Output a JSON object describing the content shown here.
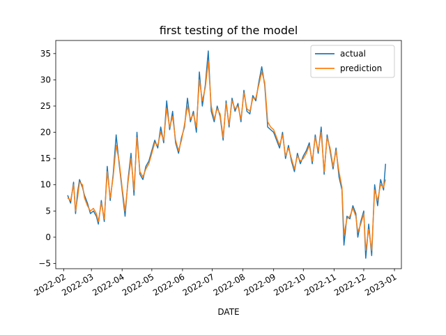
{
  "chart_data": {
    "type": "line",
    "title": "first testing of the model",
    "xlabel": "DATE",
    "ylabel": "",
    "x_axis": {
      "scale": "date",
      "range": [
        "2022-01-24",
        "2023-01-08"
      ],
      "ticks": [
        "2022-02-01",
        "2022-03-01",
        "2022-04-01",
        "2022-05-01",
        "2022-06-01",
        "2022-07-01",
        "2022-08-01",
        "2022-09-01",
        "2022-10-01",
        "2022-11-01",
        "2022-12-01",
        "2023-01-01"
      ],
      "tick_labels": [
        "2022-02",
        "2022-03",
        "2022-04",
        "2022-05",
        "2022-06",
        "2022-07",
        "2022-08",
        "2022-09",
        "2022-10",
        "2022-11",
        "2022-12",
        "2023-01"
      ]
    },
    "y_axis": {
      "range": [
        -6,
        37.5
      ],
      "ticks": [
        -5,
        0,
        5,
        10,
        15,
        20,
        25,
        30,
        35
      ],
      "tick_labels": [
        "−5",
        "0",
        "5",
        "10",
        "15",
        "20",
        "25",
        "30",
        "35"
      ]
    },
    "grid": false,
    "legend_position": "top-right",
    "series": [
      {
        "name": "actual",
        "color": "#1f77b4",
        "points": [
          [
            "2022-02-05",
            8.0
          ],
          [
            "2022-02-08",
            6.5
          ],
          [
            "2022-02-11",
            10.5
          ],
          [
            "2022-02-13",
            4.5
          ],
          [
            "2022-02-15",
            8.5
          ],
          [
            "2022-02-17",
            11.0
          ],
          [
            "2022-02-20",
            9.5
          ],
          [
            "2022-02-22",
            8.0
          ],
          [
            "2022-02-25",
            6.5
          ],
          [
            "2022-02-28",
            4.5
          ],
          [
            "2022-03-03",
            5.0
          ],
          [
            "2022-03-06",
            4.0
          ],
          [
            "2022-03-08",
            2.5
          ],
          [
            "2022-03-11",
            7.0
          ],
          [
            "2022-03-14",
            3.0
          ],
          [
            "2022-03-17",
            13.5
          ],
          [
            "2022-03-20",
            7.0
          ],
          [
            "2022-03-23",
            12.0
          ],
          [
            "2022-03-26",
            19.5
          ],
          [
            "2022-03-29",
            14.0
          ],
          [
            "2022-04-01",
            9.0
          ],
          [
            "2022-04-04",
            4.0
          ],
          [
            "2022-04-07",
            11.0
          ],
          [
            "2022-04-10",
            16.0
          ],
          [
            "2022-04-13",
            8.0
          ],
          [
            "2022-04-16",
            20.0
          ],
          [
            "2022-04-19",
            12.0
          ],
          [
            "2022-04-22",
            11.0
          ],
          [
            "2022-04-25",
            13.5
          ],
          [
            "2022-04-28",
            14.5
          ],
          [
            "2022-05-01",
            16.5
          ],
          [
            "2022-05-04",
            18.5
          ],
          [
            "2022-05-07",
            17.0
          ],
          [
            "2022-05-10",
            21.0
          ],
          [
            "2022-05-13",
            18.0
          ],
          [
            "2022-05-16",
            26.0
          ],
          [
            "2022-05-19",
            20.5
          ],
          [
            "2022-05-22",
            24.0
          ],
          [
            "2022-05-25",
            18.0
          ],
          [
            "2022-05-28",
            16.0
          ],
          [
            "2022-05-31",
            19.0
          ],
          [
            "2022-06-03",
            21.0
          ],
          [
            "2022-06-06",
            26.5
          ],
          [
            "2022-06-09",
            22.0
          ],
          [
            "2022-06-12",
            24.0
          ],
          [
            "2022-06-15",
            20.0
          ],
          [
            "2022-06-18",
            31.5
          ],
          [
            "2022-06-21",
            25.0
          ],
          [
            "2022-06-24",
            29.0
          ],
          [
            "2022-06-27",
            35.5
          ],
          [
            "2022-06-30",
            24.0
          ],
          [
            "2022-07-03",
            22.0
          ],
          [
            "2022-07-06",
            25.0
          ],
          [
            "2022-07-09",
            23.0
          ],
          [
            "2022-07-12",
            18.5
          ],
          [
            "2022-07-15",
            26.0
          ],
          [
            "2022-07-18",
            21.0
          ],
          [
            "2022-07-21",
            26.5
          ],
          [
            "2022-07-24",
            24.0
          ],
          [
            "2022-07-27",
            25.5
          ],
          [
            "2022-07-30",
            22.0
          ],
          [
            "2022-08-02",
            28.0
          ],
          [
            "2022-08-05",
            24.0
          ],
          [
            "2022-08-08",
            23.5
          ],
          [
            "2022-08-11",
            27.0
          ],
          [
            "2022-08-14",
            26.0
          ],
          [
            "2022-08-17",
            29.5
          ],
          [
            "2022-08-20",
            32.5
          ],
          [
            "2022-08-23",
            29.0
          ],
          [
            "2022-08-26",
            21.0
          ],
          [
            "2022-08-29",
            20.5
          ],
          [
            "2022-09-01",
            20.0
          ],
          [
            "2022-09-04",
            18.5
          ],
          [
            "2022-09-07",
            17.0
          ],
          [
            "2022-09-10",
            20.0
          ],
          [
            "2022-09-13",
            15.0
          ],
          [
            "2022-09-16",
            17.5
          ],
          [
            "2022-09-19",
            14.5
          ],
          [
            "2022-09-22",
            12.5
          ],
          [
            "2022-09-25",
            16.0
          ],
          [
            "2022-09-28",
            14.0
          ],
          [
            "2022-10-01",
            15.5
          ],
          [
            "2022-10-04",
            16.5
          ],
          [
            "2022-10-07",
            18.0
          ],
          [
            "2022-10-10",
            14.0
          ],
          [
            "2022-10-13",
            19.5
          ],
          [
            "2022-10-16",
            16.0
          ],
          [
            "2022-10-19",
            21.0
          ],
          [
            "2022-10-22",
            12.0
          ],
          [
            "2022-10-25",
            19.5
          ],
          [
            "2022-10-28",
            16.5
          ],
          [
            "2022-10-31",
            13.0
          ],
          [
            "2022-11-03",
            17.0
          ],
          [
            "2022-11-06",
            11.5
          ],
          [
            "2022-11-09",
            9.0
          ],
          [
            "2022-11-11",
            -1.5
          ],
          [
            "2022-11-14",
            4.0
          ],
          [
            "2022-11-17",
            3.5
          ],
          [
            "2022-11-20",
            6.0
          ],
          [
            "2022-11-23",
            4.5
          ],
          [
            "2022-11-25",
            0.0
          ],
          [
            "2022-11-28",
            3.0
          ],
          [
            "2022-12-01",
            5.0
          ],
          [
            "2022-12-03",
            -4.0
          ],
          [
            "2022-12-06",
            2.5
          ],
          [
            "2022-12-09",
            -3.5
          ],
          [
            "2022-12-12",
            10.0
          ],
          [
            "2022-12-15",
            6.0
          ],
          [
            "2022-12-18",
            11.0
          ],
          [
            "2022-12-21",
            9.0
          ],
          [
            "2022-12-23",
            14.0
          ]
        ]
      },
      {
        "name": "prediction",
        "color": "#ff7f0e",
        "points": [
          [
            "2022-02-05",
            7.5
          ],
          [
            "2022-02-08",
            7.0
          ],
          [
            "2022-02-11",
            10.0
          ],
          [
            "2022-02-13",
            5.0
          ],
          [
            "2022-02-15",
            7.5
          ],
          [
            "2022-02-17",
            10.5
          ],
          [
            "2022-02-20",
            10.0
          ],
          [
            "2022-02-22",
            7.5
          ],
          [
            "2022-02-25",
            6.0
          ],
          [
            "2022-02-28",
            5.0
          ],
          [
            "2022-03-03",
            5.5
          ],
          [
            "2022-03-06",
            4.5
          ],
          [
            "2022-03-08",
            3.0
          ],
          [
            "2022-03-11",
            6.5
          ],
          [
            "2022-03-14",
            3.5
          ],
          [
            "2022-03-17",
            12.5
          ],
          [
            "2022-03-20",
            7.5
          ],
          [
            "2022-03-23",
            11.5
          ],
          [
            "2022-03-26",
            17.5
          ],
          [
            "2022-03-29",
            14.5
          ],
          [
            "2022-04-01",
            9.5
          ],
          [
            "2022-04-04",
            5.0
          ],
          [
            "2022-04-07",
            10.5
          ],
          [
            "2022-04-10",
            15.0
          ],
          [
            "2022-04-13",
            9.0
          ],
          [
            "2022-04-16",
            19.0
          ],
          [
            "2022-04-19",
            12.5
          ],
          [
            "2022-04-22",
            11.5
          ],
          [
            "2022-04-25",
            13.0
          ],
          [
            "2022-04-28",
            14.0
          ],
          [
            "2022-05-01",
            16.0
          ],
          [
            "2022-05-04",
            18.0
          ],
          [
            "2022-05-07",
            17.5
          ],
          [
            "2022-05-10",
            20.0
          ],
          [
            "2022-05-13",
            18.5
          ],
          [
            "2022-05-16",
            24.5
          ],
          [
            "2022-05-19",
            21.0
          ],
          [
            "2022-05-22",
            23.0
          ],
          [
            "2022-05-25",
            18.5
          ],
          [
            "2022-05-28",
            16.5
          ],
          [
            "2022-05-31",
            18.5
          ],
          [
            "2022-06-03",
            21.5
          ],
          [
            "2022-06-06",
            25.0
          ],
          [
            "2022-06-09",
            22.5
          ],
          [
            "2022-06-12",
            23.5
          ],
          [
            "2022-06-15",
            21.0
          ],
          [
            "2022-06-18",
            30.0
          ],
          [
            "2022-06-21",
            26.0
          ],
          [
            "2022-06-24",
            28.5
          ],
          [
            "2022-06-27",
            33.5
          ],
          [
            "2022-06-30",
            25.0
          ],
          [
            "2022-07-03",
            22.5
          ],
          [
            "2022-07-06",
            24.5
          ],
          [
            "2022-07-09",
            23.5
          ],
          [
            "2022-07-12",
            19.0
          ],
          [
            "2022-07-15",
            25.5
          ],
          [
            "2022-07-18",
            21.5
          ],
          [
            "2022-07-21",
            26.0
          ],
          [
            "2022-07-24",
            24.5
          ],
          [
            "2022-07-27",
            25.0
          ],
          [
            "2022-07-30",
            22.5
          ],
          [
            "2022-08-02",
            27.5
          ],
          [
            "2022-08-05",
            24.5
          ],
          [
            "2022-08-08",
            24.0
          ],
          [
            "2022-08-11",
            26.5
          ],
          [
            "2022-08-14",
            26.5
          ],
          [
            "2022-08-17",
            29.0
          ],
          [
            "2022-08-20",
            31.5
          ],
          [
            "2022-08-23",
            29.5
          ],
          [
            "2022-08-26",
            22.0
          ],
          [
            "2022-08-29",
            21.0
          ],
          [
            "2022-09-01",
            20.5
          ],
          [
            "2022-09-04",
            19.0
          ],
          [
            "2022-09-07",
            17.5
          ],
          [
            "2022-09-10",
            19.5
          ],
          [
            "2022-09-13",
            15.5
          ],
          [
            "2022-09-16",
            17.0
          ],
          [
            "2022-09-19",
            15.0
          ],
          [
            "2022-09-22",
            13.0
          ],
          [
            "2022-09-25",
            15.5
          ],
          [
            "2022-09-28",
            14.5
          ],
          [
            "2022-10-01",
            15.0
          ],
          [
            "2022-10-04",
            16.0
          ],
          [
            "2022-10-07",
            17.5
          ],
          [
            "2022-10-10",
            14.5
          ],
          [
            "2022-10-13",
            19.0
          ],
          [
            "2022-10-16",
            16.5
          ],
          [
            "2022-10-19",
            20.0
          ],
          [
            "2022-10-22",
            12.5
          ],
          [
            "2022-10-25",
            19.0
          ],
          [
            "2022-10-28",
            17.0
          ],
          [
            "2022-10-31",
            13.5
          ],
          [
            "2022-11-03",
            16.5
          ],
          [
            "2022-11-06",
            12.5
          ],
          [
            "2022-11-09",
            9.5
          ],
          [
            "2022-11-11",
            0.5
          ],
          [
            "2022-11-14",
            3.5
          ],
          [
            "2022-11-17",
            4.0
          ],
          [
            "2022-11-20",
            5.5
          ],
          [
            "2022-11-23",
            4.0
          ],
          [
            "2022-11-25",
            1.0
          ],
          [
            "2022-11-28",
            2.5
          ],
          [
            "2022-12-01",
            4.5
          ],
          [
            "2022-12-03",
            -2.5
          ],
          [
            "2022-12-06",
            1.5
          ],
          [
            "2022-12-09",
            -2.5
          ],
          [
            "2022-12-12",
            9.0
          ],
          [
            "2022-12-15",
            7.0
          ],
          [
            "2022-12-18",
            10.0
          ],
          [
            "2022-12-21",
            9.5
          ],
          [
            "2022-12-23",
            11.0
          ]
        ]
      }
    ]
  }
}
